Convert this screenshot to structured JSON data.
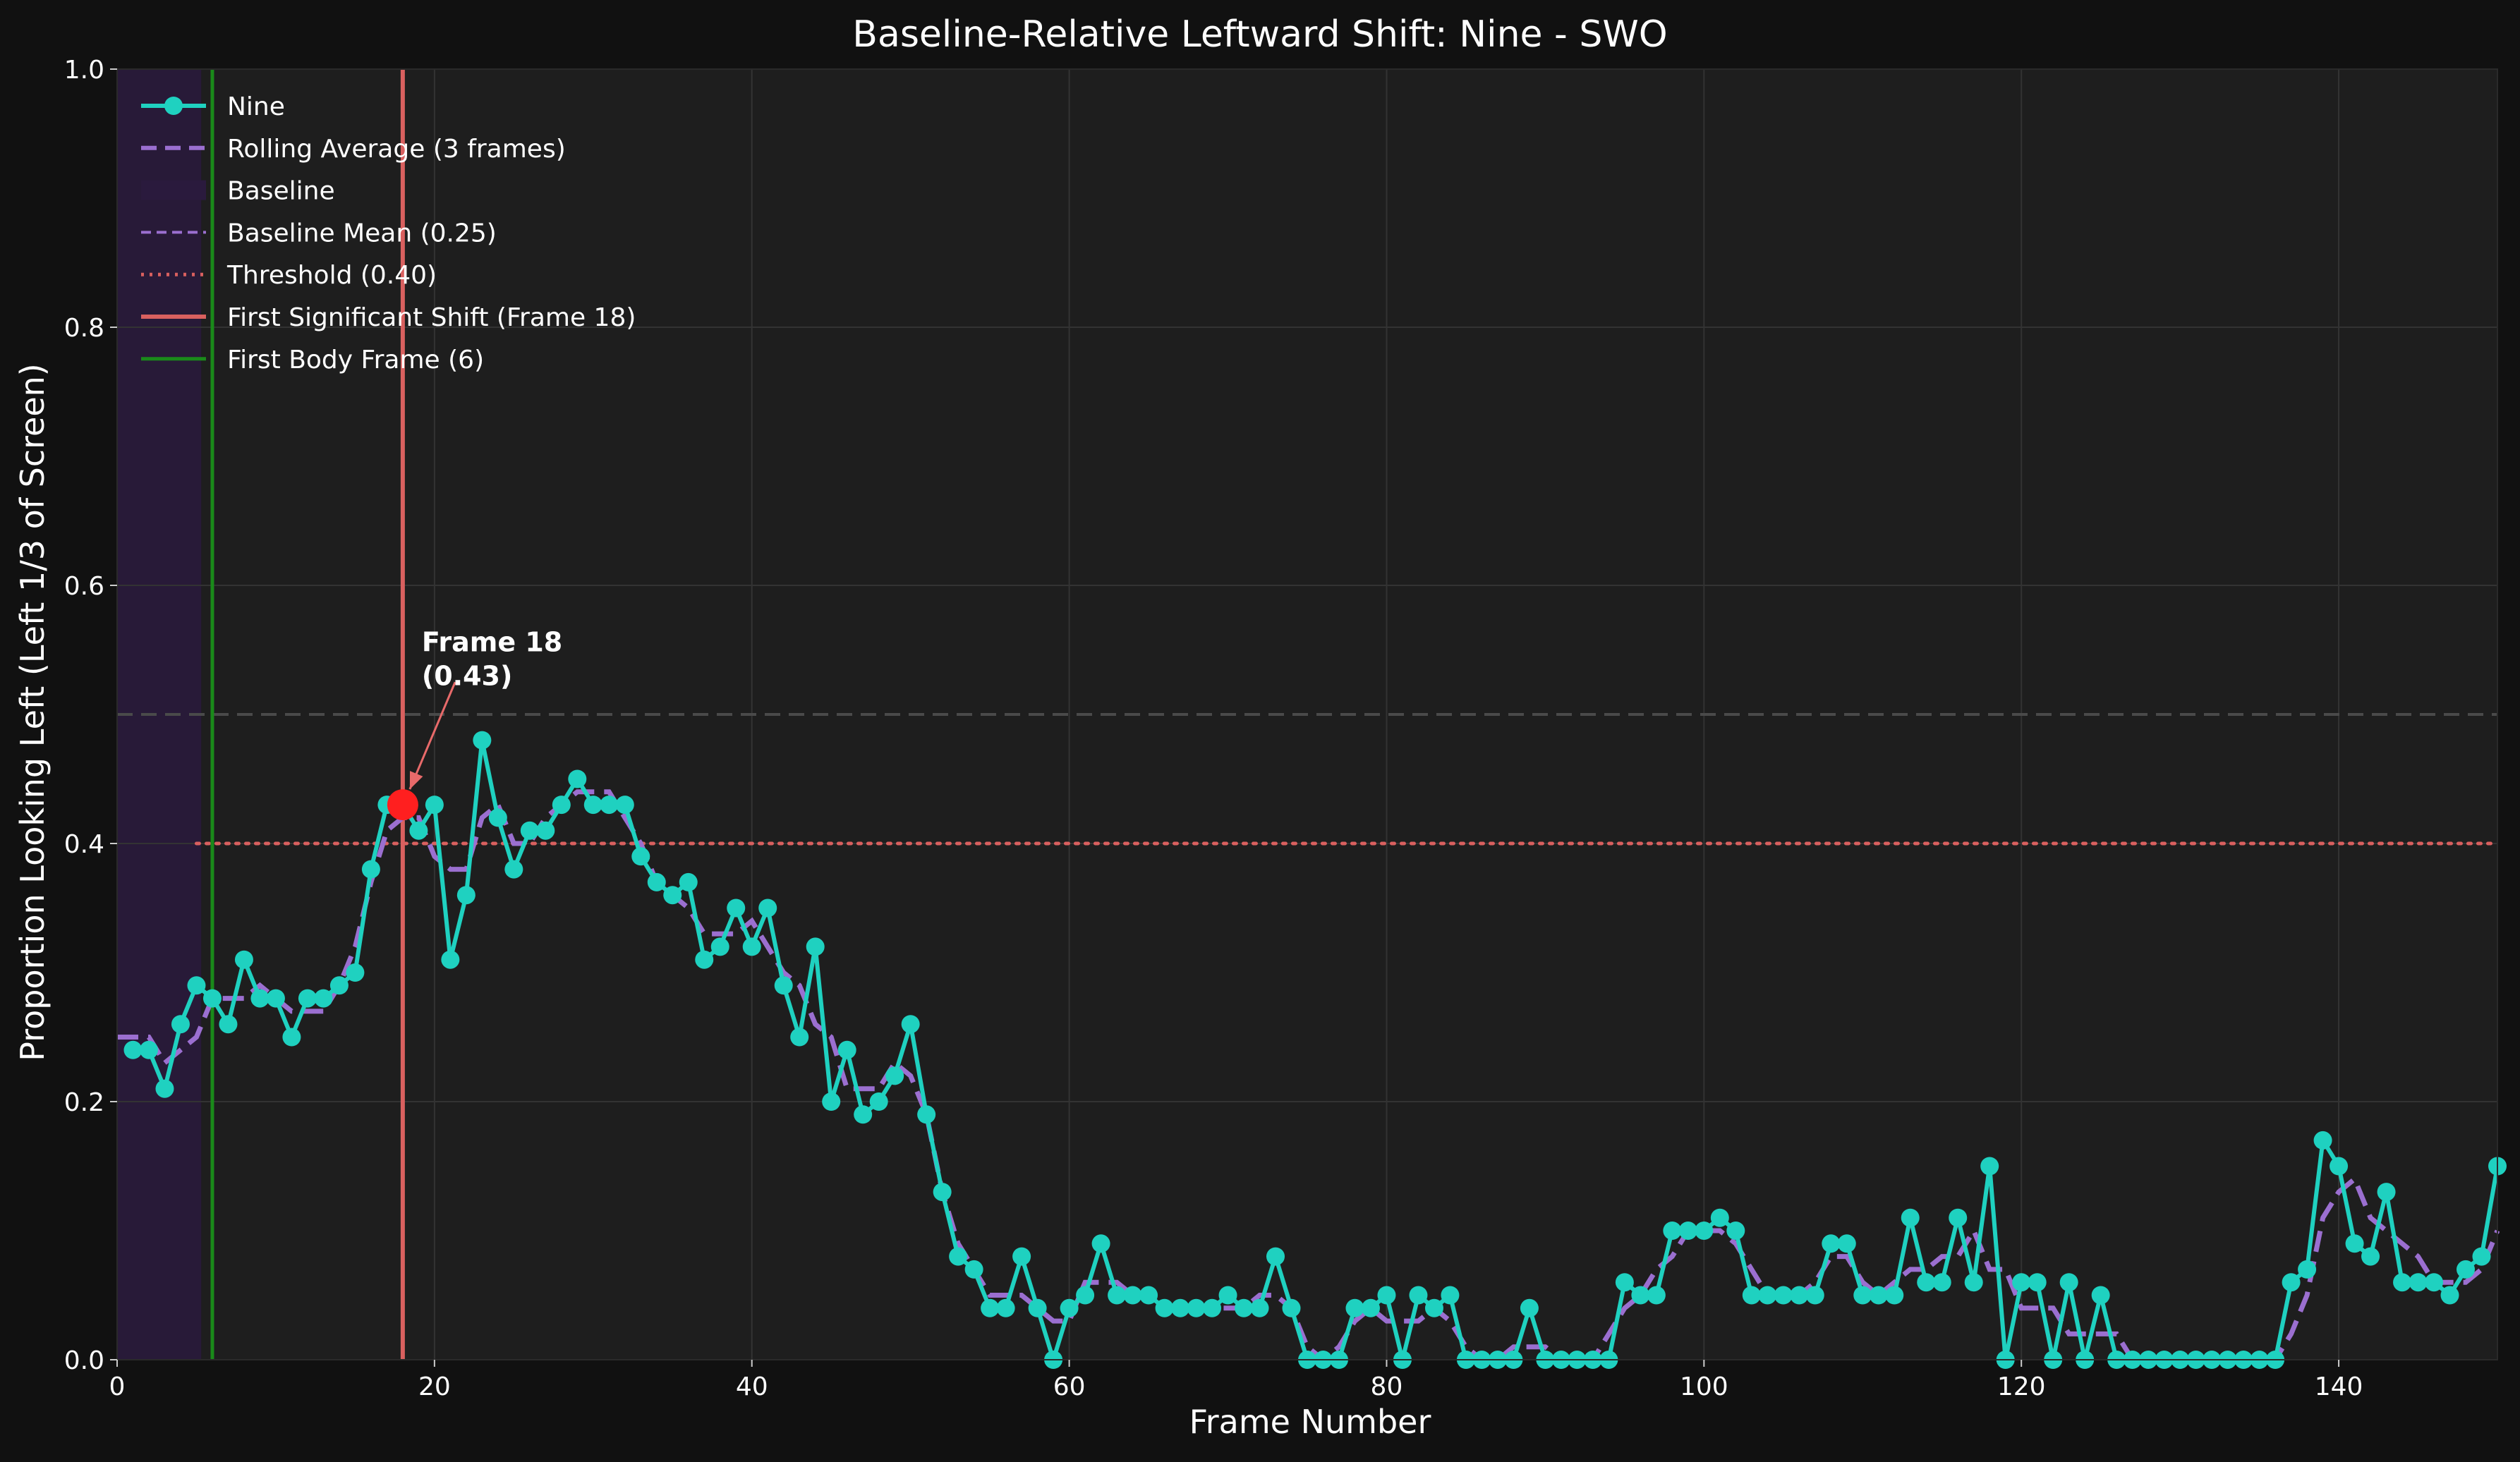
{
  "chart_data": {
    "type": "line",
    "title": "Baseline-Relative Leftward Shift: Nine - SWO",
    "xlabel": "Frame Number",
    "ylabel": "Proportion Looking Left (Left 1/3 of Screen)",
    "xlim": [
      0,
      150
    ],
    "ylim": [
      0,
      1.0
    ],
    "xticks": [
      "0",
      "20",
      "40",
      "60",
      "80",
      "100",
      "120",
      "140"
    ],
    "yticks": [
      "0.0",
      "0.2",
      "0.4",
      "0.6",
      "0.8",
      "1.0"
    ],
    "grid": true,
    "legend_position": "top-left",
    "colors": {
      "background": "#111111",
      "plot_background": "#1e1e1e",
      "series": "#1fd1c0",
      "rolling": "#9b6fd0",
      "baseline_band": "#2a1a3d",
      "threshold": "#d9605f",
      "shift_line": "#d9605f",
      "body_line": "#1a8a1a",
      "marker_highlight": "#ff1f1f"
    },
    "legend": [
      "Nine",
      "Rolling Average (3 frames)",
      "Baseline",
      "Baseline Mean (0.25)",
      "Threshold (0.40)",
      "First Significant Shift (Frame 18)",
      "First Body Frame (6)"
    ],
    "baseline_span": [
      0,
      5.3
    ],
    "baseline_mean": 0.25,
    "threshold": 0.4,
    "threshold_start_frame": 5,
    "reference_line": 0.5,
    "first_shift_frame": 18,
    "first_body_frame": 6,
    "annotation": {
      "frame": 18,
      "value": 0.43,
      "line1": "Frame 18",
      "line2": "(0.43)"
    },
    "series": [
      {
        "name": "Nine",
        "x": [
          1,
          2,
          3,
          4,
          5,
          6,
          7,
          8,
          9,
          10,
          11,
          12,
          13,
          14,
          15,
          16,
          17,
          18,
          19,
          20,
          21,
          22,
          23,
          24,
          25,
          26,
          27,
          28,
          29,
          30,
          31,
          32,
          33,
          34,
          35,
          36,
          37,
          38,
          39,
          40,
          41,
          42,
          43,
          44,
          45,
          46,
          47,
          48,
          49,
          50,
          51,
          52,
          53,
          54,
          55,
          56,
          57,
          58,
          59,
          60,
          61,
          62,
          63,
          64,
          65,
          66,
          67,
          68,
          69,
          70,
          71,
          72,
          73,
          74,
          75,
          76,
          77,
          78,
          79,
          80,
          81,
          82,
          83,
          84,
          85,
          86,
          87,
          88,
          89,
          90,
          91,
          92,
          93,
          94,
          95,
          96,
          97,
          98,
          99,
          100,
          101,
          102,
          103,
          104,
          105,
          106,
          107,
          108,
          109,
          110,
          111,
          112,
          113,
          114,
          115,
          116,
          117,
          118,
          119,
          120,
          121,
          122,
          123,
          124,
          125,
          126,
          127,
          128,
          129,
          130,
          131,
          132,
          133,
          134,
          135,
          136,
          137,
          138,
          139,
          140,
          141,
          142,
          143,
          144,
          145,
          146,
          147,
          148,
          149,
          150
        ],
        "values": [
          0.24,
          0.24,
          0.21,
          0.26,
          0.29,
          0.28,
          0.26,
          0.31,
          0.28,
          0.28,
          0.25,
          0.28,
          0.28,
          0.29,
          0.3,
          0.38,
          0.43,
          0.43,
          0.41,
          0.43,
          0.31,
          0.36,
          0.48,
          0.42,
          0.38,
          0.41,
          0.41,
          0.43,
          0.45,
          0.43,
          0.43,
          0.43,
          0.39,
          0.37,
          0.36,
          0.37,
          0.31,
          0.32,
          0.35,
          0.32,
          0.35,
          0.29,
          0.25,
          0.32,
          0.2,
          0.24,
          0.19,
          0.2,
          0.22,
          0.26,
          0.19,
          0.13,
          0.08,
          0.07,
          0.04,
          0.04,
          0.08,
          0.04,
          0.0,
          0.04,
          0.05,
          0.09,
          0.05,
          0.05,
          0.05,
          0.04,
          0.04,
          0.04,
          0.04,
          0.05,
          0.04,
          0.04,
          0.08,
          0.04,
          0.0,
          0.0,
          0.0,
          0.04,
          0.04,
          0.05,
          0.0,
          0.05,
          0.04,
          0.05,
          0.0,
          0.0,
          0.0,
          0.0,
          0.04,
          0.0,
          0.0,
          0.0,
          0.0,
          0.0,
          0.06,
          0.05,
          0.05,
          0.1,
          0.1,
          0.1,
          0.11,
          0.1,
          0.05,
          0.05,
          0.05,
          0.05,
          0.05,
          0.09,
          0.09,
          0.05,
          0.05,
          0.05,
          0.11,
          0.06,
          0.06,
          0.11,
          0.06,
          0.15,
          0.0,
          0.06,
          0.06,
          0.0,
          0.06,
          0.0,
          0.05,
          0.0,
          0.0,
          0.0,
          0.0,
          0.0,
          0.0,
          0.0,
          0.0,
          0.0,
          0.0,
          0.0,
          0.06,
          0.07,
          0.17,
          0.15,
          0.09,
          0.08,
          0.13,
          0.06,
          0.06,
          0.06,
          0.05,
          0.07,
          0.08,
          0.15
        ]
      },
      {
        "name": "Rolling Average (3 frames)",
        "x": [
          0,
          1,
          2,
          3,
          4,
          5,
          6,
          7,
          8,
          9,
          10,
          11,
          12,
          13,
          14,
          15,
          16,
          17,
          18,
          19,
          20,
          21,
          22,
          23,
          24,
          25,
          26,
          27,
          28,
          29,
          30,
          31,
          32,
          33,
          34,
          35,
          36,
          37,
          38,
          39,
          40,
          41,
          42,
          43,
          44,
          45,
          46,
          47,
          48,
          49,
          50,
          51,
          52,
          53,
          54,
          55,
          56,
          57,
          58,
          59,
          60,
          61,
          62,
          63,
          64,
          65,
          66,
          67,
          68,
          69,
          70,
          71,
          72,
          73,
          74,
          75,
          76,
          77,
          78,
          79,
          80,
          81,
          82,
          83,
          84,
          85,
          86,
          87,
          88,
          89,
          90,
          91,
          92,
          93,
          94,
          95,
          96,
          97,
          98,
          99,
          100,
          101,
          102,
          103,
          104,
          105,
          106,
          107,
          108,
          109,
          110,
          111,
          112,
          113,
          114,
          115,
          116,
          117,
          118,
          119,
          120,
          121,
          122,
          123,
          124,
          125,
          126,
          127,
          128,
          129,
          130,
          131,
          132,
          133,
          134,
          135,
          136,
          137,
          138,
          139,
          140,
          141,
          142,
          143,
          144,
          145,
          146,
          147,
          148,
          149,
          150
        ],
        "values": [
          0.25,
          0.25,
          0.25,
          0.23,
          0.24,
          0.25,
          0.28,
          0.28,
          0.28,
          0.29,
          0.28,
          0.27,
          0.27,
          0.27,
          0.29,
          0.32,
          0.37,
          0.41,
          0.42,
          0.42,
          0.39,
          0.38,
          0.38,
          0.42,
          0.43,
          0.4,
          0.4,
          0.42,
          0.43,
          0.44,
          0.44,
          0.44,
          0.42,
          0.4,
          0.37,
          0.36,
          0.35,
          0.33,
          0.33,
          0.33,
          0.34,
          0.32,
          0.3,
          0.29,
          0.26,
          0.25,
          0.21,
          0.21,
          0.21,
          0.23,
          0.22,
          0.19,
          0.13,
          0.09,
          0.07,
          0.05,
          0.05,
          0.05,
          0.04,
          0.03,
          0.03,
          0.06,
          0.06,
          0.06,
          0.05,
          0.05,
          0.04,
          0.04,
          0.04,
          0.04,
          0.04,
          0.04,
          0.05,
          0.05,
          0.04,
          0.01,
          0.0,
          0.01,
          0.03,
          0.04,
          0.03,
          0.03,
          0.03,
          0.04,
          0.03,
          0.01,
          0.0,
          0.0,
          0.01,
          0.01,
          0.01,
          0.0,
          0.0,
          0.0,
          0.02,
          0.04,
          0.05,
          0.07,
          0.08,
          0.1,
          0.1,
          0.1,
          0.09,
          0.07,
          0.05,
          0.05,
          0.05,
          0.06,
          0.08,
          0.08,
          0.06,
          0.05,
          0.06,
          0.07,
          0.07,
          0.08,
          0.08,
          0.1,
          0.07,
          0.07,
          0.04,
          0.04,
          0.04,
          0.02,
          0.02,
          0.02,
          0.02,
          0.0,
          0.0,
          0.0,
          0.0,
          0.0,
          0.0,
          0.0,
          0.0,
          0.0,
          0.0,
          0.02,
          0.05,
          0.11,
          0.13,
          0.14,
          0.11,
          0.1,
          0.09,
          0.08,
          0.06,
          0.06,
          0.06,
          0.07,
          0.1
        ]
      }
    ]
  }
}
